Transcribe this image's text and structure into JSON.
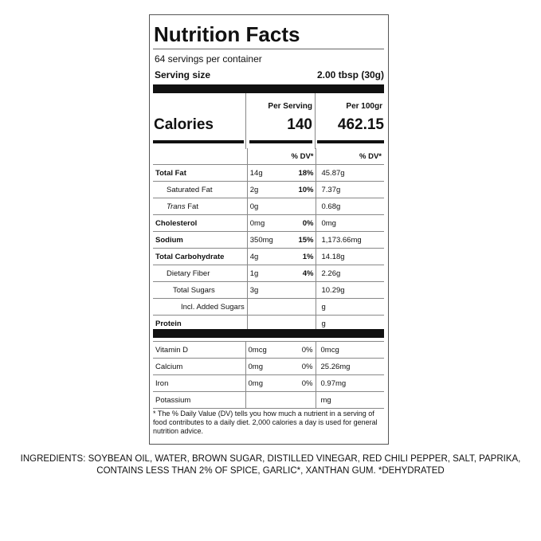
{
  "label": {
    "title": "Nutrition Facts",
    "servings": "64 servings per container",
    "serving_size_label": "Serving size",
    "serving_size": "2.00 tbsp (30g)",
    "per_serving_head": "Per Serving",
    "per_100_head": "Per 100gr",
    "calories_label": "Calories",
    "calories_per_serving": "140",
    "calories_per_100": "462.15",
    "dv_head": "% DV*",
    "dv_head_100": "% DV*",
    "nutrients": [
      {
        "name": "Total Fat",
        "amount": "14g",
        "dv": "18%",
        "per_100": "45.87g"
      },
      {
        "name": "Saturated Fat",
        "amount": "2g",
        "dv": "10%",
        "per_100": "7.37g"
      },
      {
        "name_italic": "Trans",
        "name": " Fat",
        "amount": "0g",
        "per_100": "0.68g"
      },
      {
        "name": "Cholesterol",
        "amount": "0mg",
        "dv": "0%",
        "per_100": "0mg"
      },
      {
        "name": "Sodium",
        "amount": "350mg",
        "dv": "15%",
        "per_100": "1,173.66mg"
      },
      {
        "name": "Total Carbohydrate",
        "amount": "4g",
        "dv": "1%",
        "per_100": "14.18g"
      },
      {
        "name": "Dietary Fiber",
        "amount": "1g",
        "dv": "4%",
        "per_100": "2.26g"
      },
      {
        "name": "Total Sugars",
        "amount": "3g",
        "per_100": "10.29g"
      },
      {
        "name": "Incl. Added Sugars",
        "per_100": "g"
      },
      {
        "name": "Protein",
        "per_100": "g"
      }
    ],
    "vitamins": [
      {
        "name": "Vitamin D",
        "amount": "0mcg",
        "dv": "0%",
        "per_100": "0mcg"
      },
      {
        "name": "Calcium",
        "amount": "0mg",
        "dv": "0%",
        "per_100": "25.26mg"
      },
      {
        "name": "Iron",
        "amount": "0mg",
        "dv": "0%",
        "per_100": "0.97mg"
      },
      {
        "name": "Potassium",
        "per_100": "mg"
      }
    ],
    "footnote": "* The % Daily Value (DV) tells you how much a nutrient in a serving of food contributes to a daily diet. 2,000 calories a day is used for general nutrition advice."
  },
  "ingredients": [
    "INGREDIENTS: SOYBEAN OIL, WATER, BROWN SUGAR, DISTILLED VINEGAR, RED CHILI PEPPER, SALT, PAPRIKA,",
    "CONTAINS LESS THAN 2% OF SPICE, GARLIC*, XANTHAN GUM. *DEHYDRATED"
  ]
}
